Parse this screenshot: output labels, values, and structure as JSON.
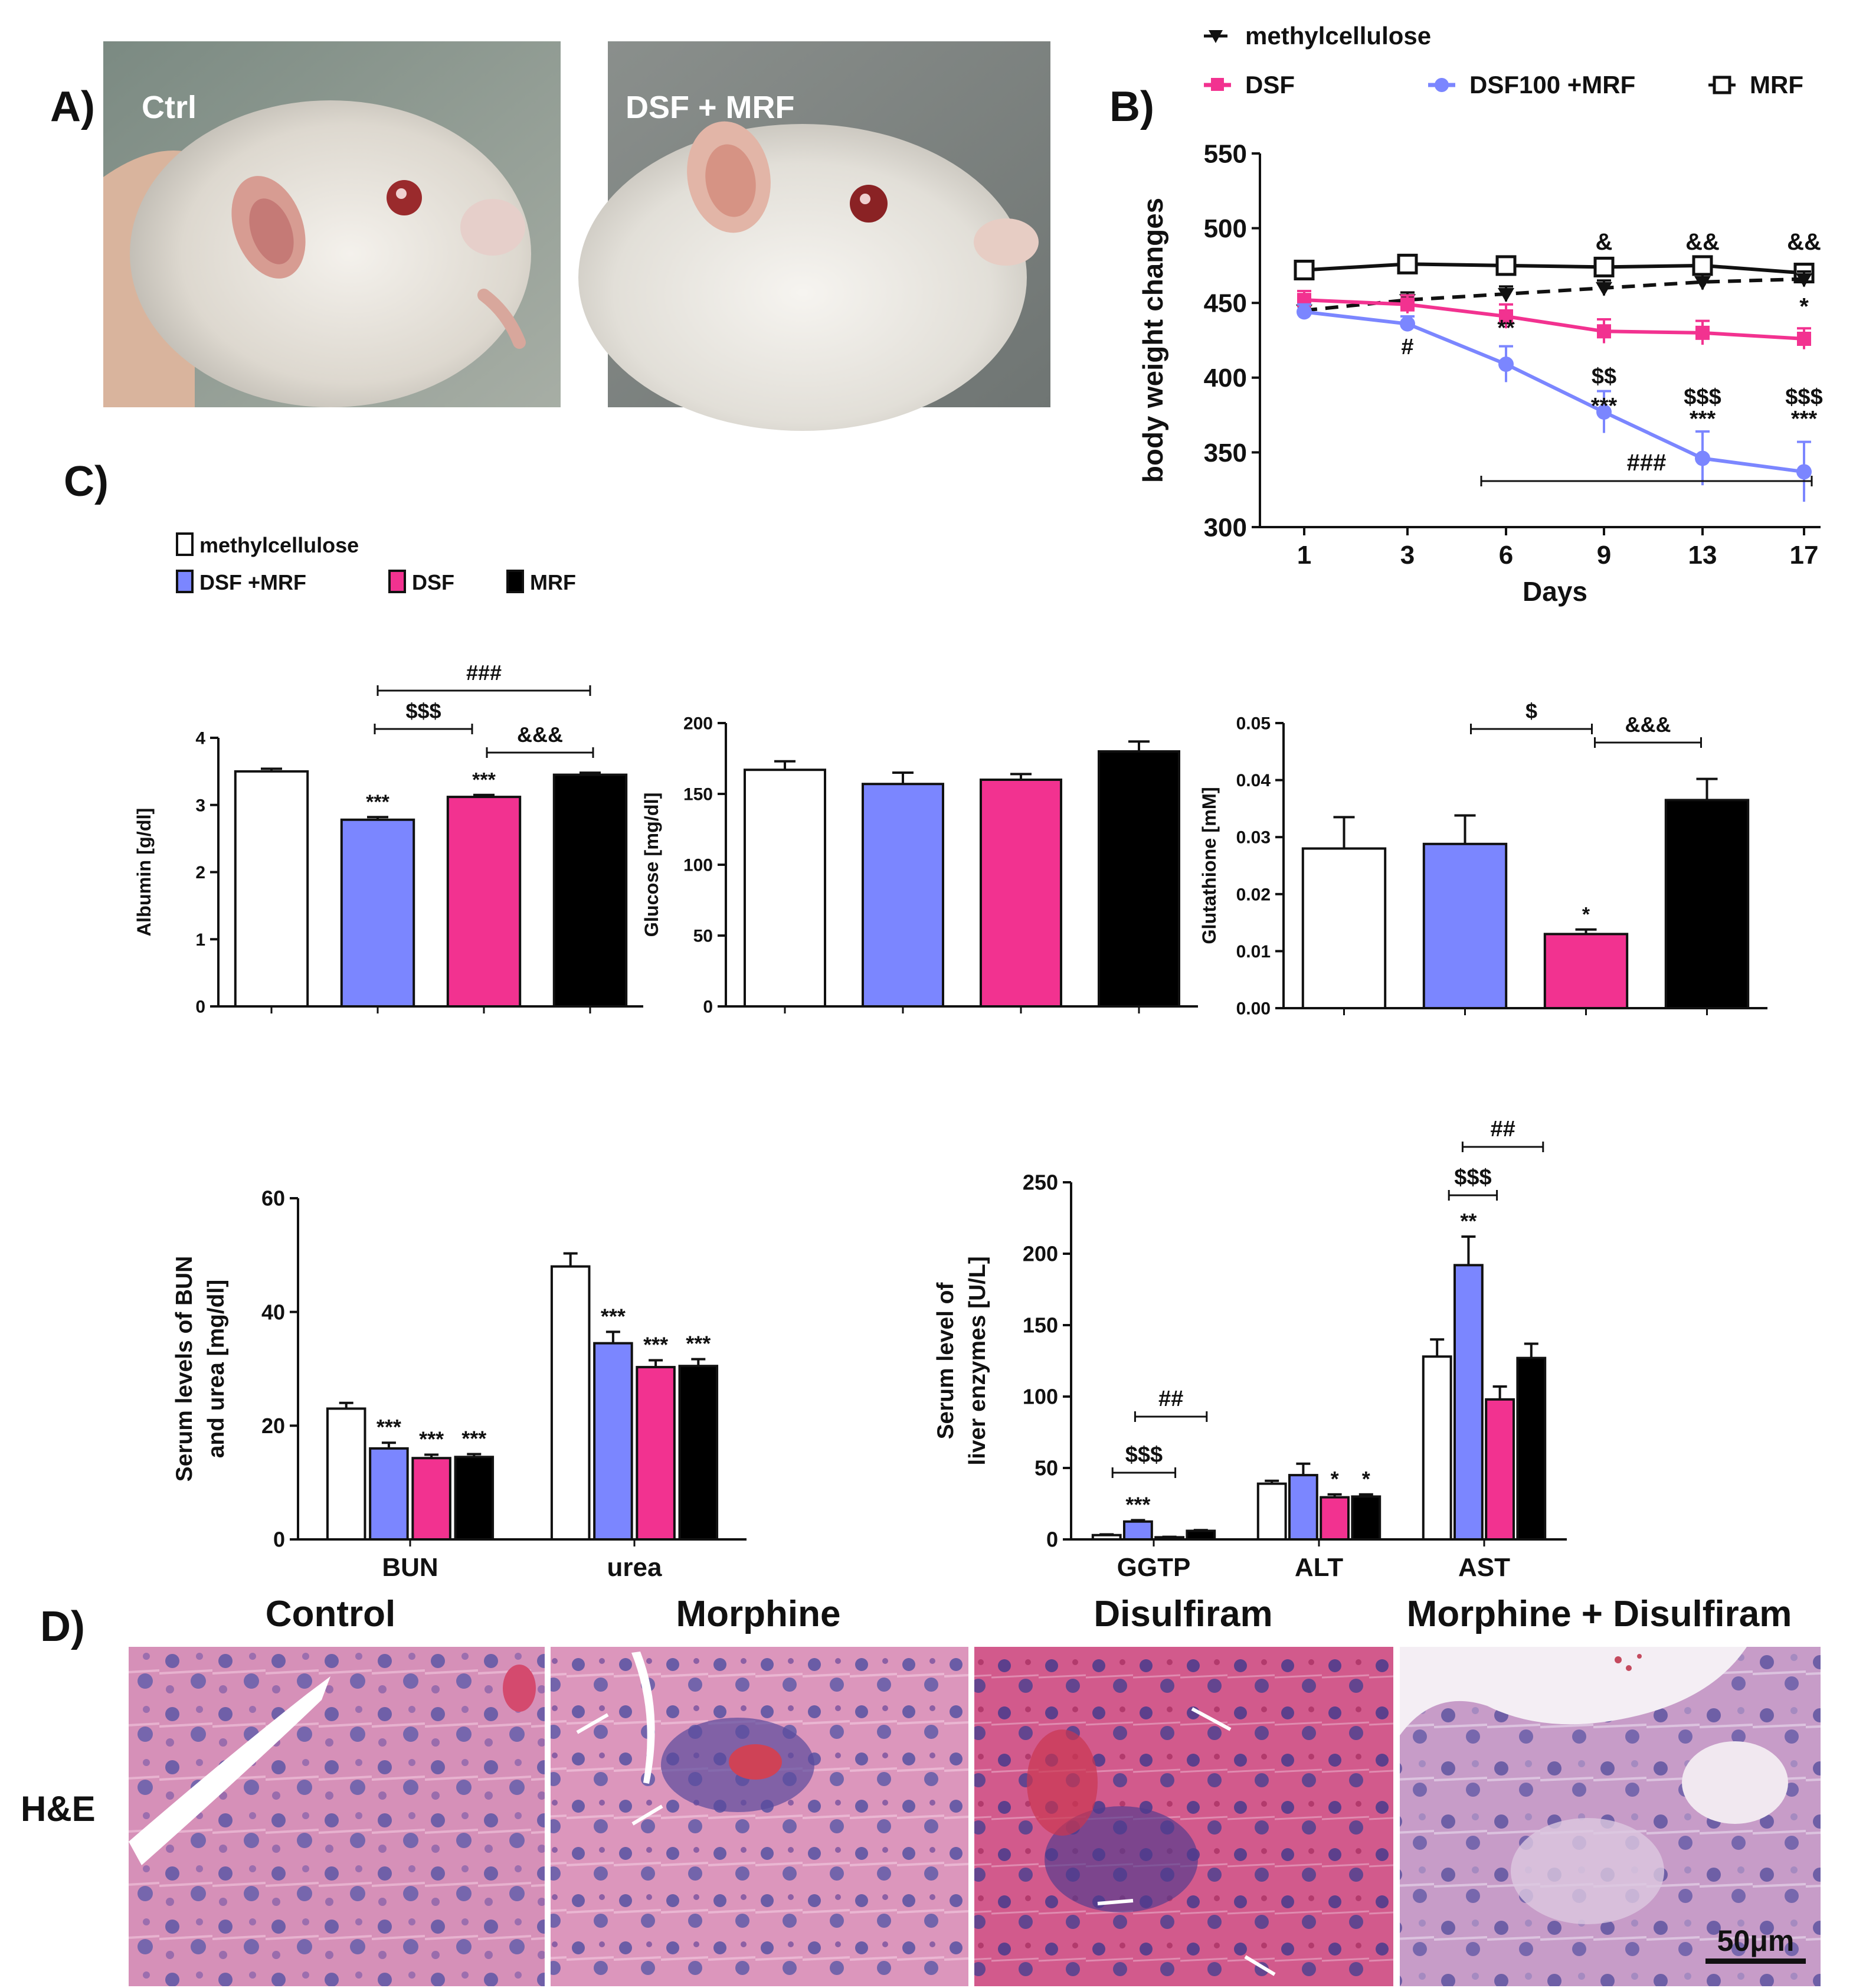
{
  "panels": {
    "A": "A)",
    "B": "B)",
    "C": "C)",
    "D": "D)"
  },
  "colors": {
    "control": "#ffffff",
    "dsf_mrf": "#7b86ff",
    "dsf": "#f23290",
    "mrf": "#000000"
  },
  "panel_a": {
    "photo_left_label": "Ctrl",
    "photo_right_label": "DSF + MRF"
  },
  "chart_data": [
    {
      "id": "bodyweight",
      "type": "line",
      "ylabel": "body weight changes",
      "xlabel": "Days",
      "ylim": [
        300,
        550
      ],
      "yticks": [
        300,
        350,
        400,
        450,
        500,
        550
      ],
      "x": [
        "1",
        "3",
        "6",
        "9",
        "13",
        "17"
      ],
      "legend": [
        "methylcellulose",
        "DSF",
        "DSF100 +MRF",
        "MRF"
      ],
      "series": [
        {
          "name": "methylcellulose",
          "values": [
            445,
            452,
            456,
            460,
            464,
            466
          ],
          "err": [
            5,
            5,
            5,
            5,
            5,
            5
          ]
        },
        {
          "name": "DSF",
          "values": [
            452,
            449,
            441,
            431,
            430,
            426
          ],
          "err": [
            6,
            6,
            8,
            8,
            8,
            7
          ]
        },
        {
          "name": "DSF100 +MRF",
          "values": [
            444,
            436,
            409,
            377,
            346,
            337
          ],
          "err": [
            5,
            5,
            12,
            14,
            18,
            20
          ]
        },
        {
          "name": "MRF",
          "values": [
            472,
            476,
            475,
            474,
            475,
            470
          ],
          "err": [
            5,
            5,
            5,
            5,
            5,
            5
          ]
        }
      ],
      "annotations": {
        "top": [
          {
            "x": "9",
            "text": "&"
          },
          {
            "x": "13",
            "text": "&&"
          },
          {
            "x": "17",
            "text": "&&"
          }
        ],
        "dsf": [
          {
            "x": "17",
            "text": "*"
          }
        ],
        "combo": [
          {
            "x": "3",
            "lines": [
              "#"
            ]
          },
          {
            "x": "6",
            "lines": [
              "**"
            ]
          },
          {
            "x": "9",
            "lines": [
              "$$",
              "***"
            ]
          },
          {
            "x": "13",
            "lines": [
              "$$$",
              "***"
            ]
          },
          {
            "x": "17",
            "lines": [
              "$$$",
              "***"
            ]
          }
        ],
        "bracket": "###"
      }
    },
    {
      "id": "albumin",
      "type": "bar",
      "ylabel": "Albumin [g/dl]",
      "ylim": [
        0,
        4
      ],
      "yticks": [
        0,
        1,
        2,
        3,
        4
      ],
      "categories": [
        "methylcellulose",
        "DSF +MRF",
        "DSF",
        "MRF"
      ],
      "values": [
        3.5,
        2.78,
        3.12,
        3.45
      ],
      "err": [
        0.04,
        0.04,
        0.03,
        0.03
      ],
      "stars": [
        "",
        "***",
        "***",
        ""
      ],
      "brackets": [
        "###",
        "$$$",
        "&&&"
      ]
    },
    {
      "id": "glucose",
      "type": "bar",
      "ylabel": "Glucose [mg/dl]",
      "ylim": [
        0,
        200
      ],
      "yticks": [
        0,
        50,
        100,
        150,
        200
      ],
      "categories": [
        "methylcellulose",
        "DSF +MRF",
        "DSF",
        "MRF"
      ],
      "values": [
        167,
        157,
        160,
        180
      ],
      "err": [
        6,
        8,
        4,
        7
      ]
    },
    {
      "id": "glutathione",
      "type": "bar",
      "ylabel": "Glutathione [mM]",
      "ylim": [
        0,
        0.05
      ],
      "yticks": [
        "0.00",
        "0.01",
        "0.02",
        "0.03",
        "0.04",
        "0.05"
      ],
      "categories": [
        "methylcellulose",
        "DSF +MRF",
        "DSF",
        "MRF"
      ],
      "values": [
        0.028,
        0.0288,
        0.013,
        0.0365
      ],
      "err": [
        0.0055,
        0.005,
        0.0008,
        0.0037
      ],
      "stars": [
        "",
        "",
        "*",
        ""
      ],
      "brackets": [
        "$",
        "&&&"
      ]
    },
    {
      "id": "bun",
      "type": "bar",
      "ylabel": [
        "Serum levels of BUN",
        "and urea [mg/dl]"
      ],
      "ylim": [
        0,
        60
      ],
      "yticks": [
        0,
        20,
        40,
        60
      ],
      "categories": [
        "BUN",
        "urea"
      ],
      "series": [
        {
          "name": "methylcellulose",
          "values": [
            23,
            48
          ],
          "err": [
            1,
            2.3
          ]
        },
        {
          "name": "DSF +MRF",
          "values": [
            16,
            34.5
          ],
          "err": [
            1,
            2
          ]
        },
        {
          "name": "DSF",
          "values": [
            14.3,
            30.3
          ],
          "err": [
            0.6,
            1.2
          ]
        },
        {
          "name": "MRF",
          "values": [
            14.5,
            30.5
          ],
          "err": [
            0.5,
            1.2
          ]
        }
      ],
      "stars": [
        [
          "",
          "***",
          "***",
          "***"
        ],
        [
          "",
          "***",
          "***",
          "***"
        ]
      ]
    },
    {
      "id": "liver",
      "type": "bar",
      "ylabel": [
        "Serum level of",
        "liver enzymes [U/L]"
      ],
      "ylim": [
        0,
        250
      ],
      "yticks": [
        0,
        50,
        100,
        150,
        200,
        250
      ],
      "categories": [
        "GGTP",
        "ALT",
        "AST"
      ],
      "series": [
        {
          "name": "methylcellulose",
          "values": [
            3,
            39,
            128
          ],
          "err": [
            0.5,
            2,
            12
          ]
        },
        {
          "name": "DSF +MRF",
          "values": [
            12.5,
            45,
            192
          ],
          "err": [
            1,
            8,
            20
          ]
        },
        {
          "name": "DSF",
          "values": [
            1.5,
            29.5,
            98
          ],
          "err": [
            0.3,
            2,
            9
          ]
        },
        {
          "name": "MRF",
          "values": [
            6,
            30,
            127
          ],
          "err": [
            0.5,
            1.5,
            10
          ]
        }
      ],
      "stars": [
        [
          "",
          "***",
          "",
          ""
        ],
        [
          "",
          "",
          "*",
          "*"
        ],
        [
          "",
          "**",
          "",
          ""
        ]
      ],
      "brackets": {
        "GGTP": [
          "$$$",
          "##"
        ],
        "AST": [
          "$$$",
          "##"
        ]
      }
    }
  ],
  "legend_c": [
    "methylcellulose",
    "DSF +MRF",
    "DSF",
    "MRF"
  ],
  "panel_d": {
    "titles": [
      "Control",
      "Morphine",
      "Disulfiram",
      "Morphine + Disulfiram"
    ],
    "row_label": "H&E",
    "scalebar": "50μm"
  }
}
